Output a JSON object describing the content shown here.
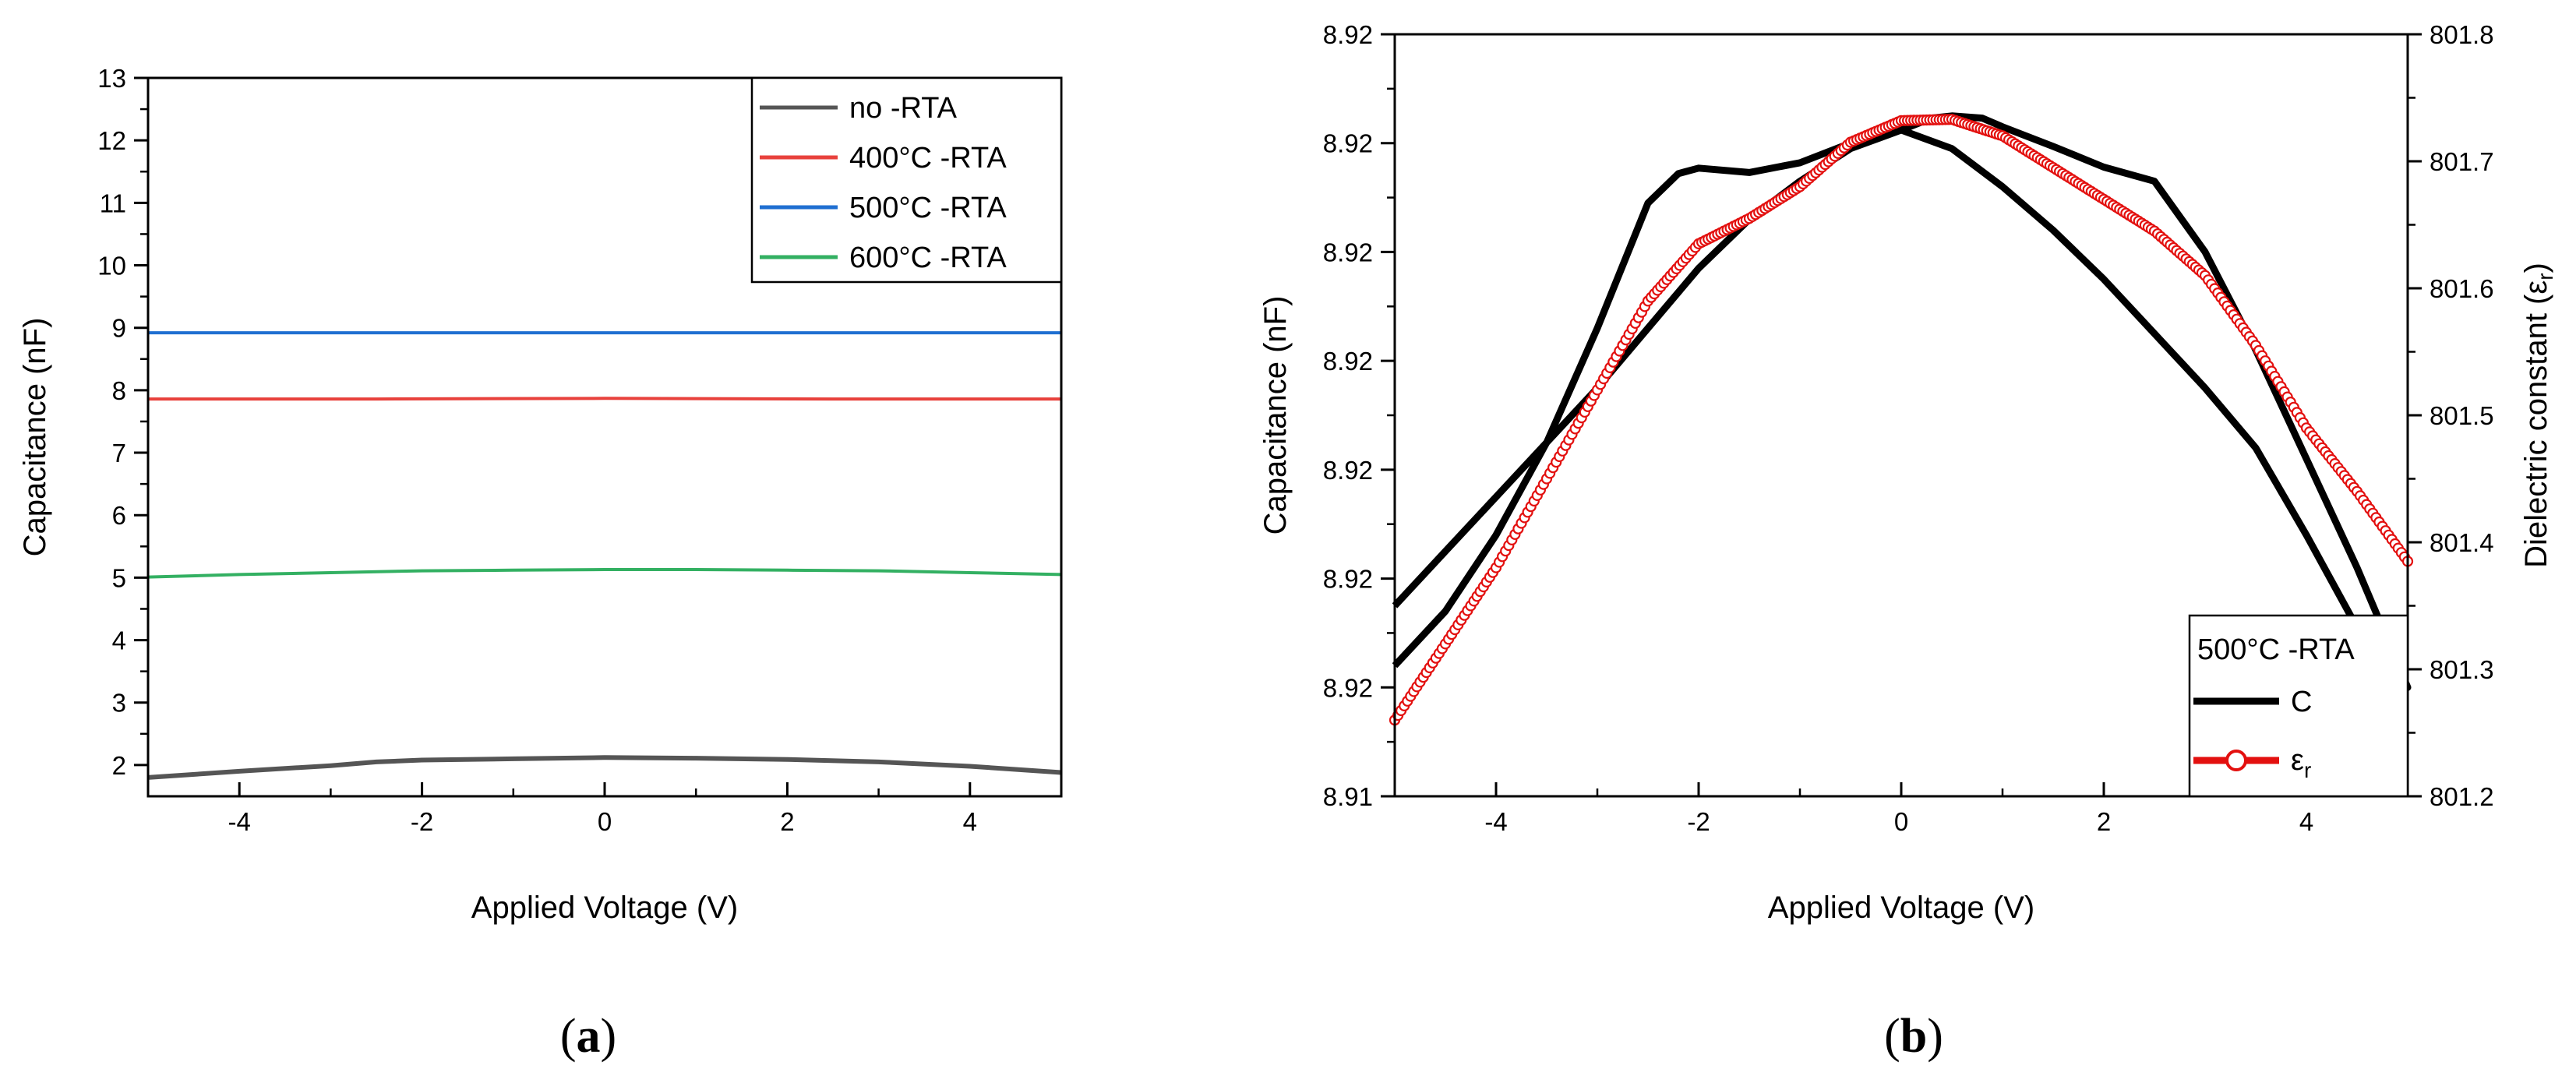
{
  "chart_data": [
    {
      "type": "line",
      "panel_label": "a",
      "xlabel": "Applied Voltage (V)",
      "ylabel": "Capacitance (nF)",
      "xlim": [
        -5,
        5
      ],
      "ylim": [
        1.5,
        13
      ],
      "x_ticks": [
        -4,
        -2,
        0,
        2,
        4
      ],
      "x_tick_labels": [
        "-4",
        "-2",
        "0",
        "2",
        "4"
      ],
      "y_ticks": [
        2,
        3,
        4,
        5,
        6,
        7,
        8,
        9,
        10,
        11,
        12,
        13
      ],
      "y_tick_labels": [
        "2",
        "3",
        "4",
        "5",
        "6",
        "7",
        "8",
        "9",
        "10",
        "11",
        "12",
        "13"
      ],
      "grid": false,
      "legend_position": "top-right",
      "series": [
        {
          "name": "no -RTA",
          "color": "#555555",
          "x": [
            -5,
            -4,
            -3,
            -2.5,
            -2,
            -1,
            0,
            1,
            2,
            3,
            4,
            5
          ],
          "y": [
            1.8,
            1.9,
            1.99,
            2.05,
            2.08,
            2.1,
            2.12,
            2.11,
            2.09,
            2.05,
            1.98,
            1.88
          ]
        },
        {
          "name": "400°C -RTA",
          "color": "#e8413c",
          "x": [
            -5,
            -2.5,
            0,
            2.5,
            5
          ],
          "y": [
            7.86,
            7.86,
            7.87,
            7.86,
            7.86
          ]
        },
        {
          "name": "500°C -RTA",
          "color": "#1f6fd1",
          "x": [
            -5,
            -2.5,
            0,
            2.5,
            5
          ],
          "y": [
            8.92,
            8.92,
            8.92,
            8.92,
            8.92
          ]
        },
        {
          "name": "600°C -RTA",
          "color": "#33b062",
          "x": [
            -5,
            -4,
            -3,
            -2,
            -1,
            0,
            1,
            2,
            3,
            4,
            5
          ],
          "y": [
            5.01,
            5.05,
            5.08,
            5.11,
            5.12,
            5.13,
            5.13,
            5.12,
            5.11,
            5.08,
            5.05
          ]
        }
      ]
    },
    {
      "type": "line",
      "panel_label": "b",
      "xlabel": "Applied Voltage (V)",
      "ylabel": "Capacitance (nF)",
      "y2label_main": "Dielectric constant (ε",
      "y2label_sub": "r",
      "y2label_end": ")",
      "xlim": [
        -5,
        5
      ],
      "ylim": [
        0,
        7
      ],
      "y2lim": [
        801.2,
        801.8
      ],
      "x_ticks": [
        -4,
        -2,
        0,
        2,
        4
      ],
      "x_tick_labels": [
        "-4",
        "-2",
        "0",
        "2",
        "4"
      ],
      "y_ticks": [
        0,
        1,
        2,
        3,
        4,
        5,
        6,
        7
      ],
      "y_tick_labels": [
        "8.91",
        "8.92",
        "8.92",
        "8.92",
        "8.92",
        "8.92",
        "8.92",
        "8.92"
      ],
      "y2_ticks": [
        801.2,
        801.3,
        801.4,
        801.5,
        801.6,
        801.7,
        801.8
      ],
      "y2_tick_labels": [
        "801.2",
        "801.3",
        "801.4",
        "801.5",
        "801.6",
        "801.7",
        "801.8"
      ],
      "grid": false,
      "legend_position": "bottom-right",
      "legend_title": "500°C -RTA",
      "series": [
        {
          "name": "C",
          "color": "#000000",
          "axis": "left",
          "x": [
            -5,
            -4.5,
            -4,
            -3.5,
            -3,
            -2.5,
            -2.2,
            -2,
            -1.5,
            -1,
            -0.5,
            0,
            0.3,
            0.5,
            0.8,
            1,
            1.5,
            2,
            2.5,
            3,
            3.5,
            4,
            4.5,
            5,
            4.5,
            4,
            3.5,
            3,
            2.5,
            2,
            1.5,
            1,
            0.5,
            0,
            -0.5,
            -1,
            -1.5,
            -2,
            -2.5,
            -3,
            -3.5,
            -4,
            -4.5,
            -5
          ],
          "y": [
            1.2,
            1.7,
            2.4,
            3.25,
            4.3,
            5.45,
            5.72,
            5.77,
            5.73,
            5.82,
            6.0,
            6.12,
            6.23,
            6.25,
            6.23,
            6.15,
            5.97,
            5.78,
            5.65,
            5.0,
            4.1,
            3.1,
            2.1,
            1.0,
            1.55,
            2.4,
            3.2,
            3.75,
            4.25,
            4.75,
            5.2,
            5.6,
            5.95,
            6.12,
            5.95,
            5.65,
            5.3,
            4.85,
            4.3,
            3.75,
            3.25,
            2.75,
            2.25,
            1.75
          ]
        },
        {
          "name": "ε",
          "name_sub": "r",
          "color": "#e3100f",
          "axis": "right",
          "x": [
            -5,
            -4.5,
            -4,
            -3.5,
            -3,
            -2.5,
            -2,
            -1.5,
            -1,
            -0.5,
            0,
            0.5,
            1,
            1.5,
            2,
            2.5,
            3,
            3.5,
            4,
            4.5,
            5
          ],
          "y2": [
            801.26,
            801.32,
            801.38,
            801.45,
            801.52,
            801.59,
            801.635,
            801.655,
            801.68,
            801.715,
            801.732,
            801.733,
            801.72,
            801.695,
            801.67,
            801.645,
            801.61,
            801.555,
            801.49,
            801.44,
            801.385
          ]
        }
      ]
    }
  ]
}
